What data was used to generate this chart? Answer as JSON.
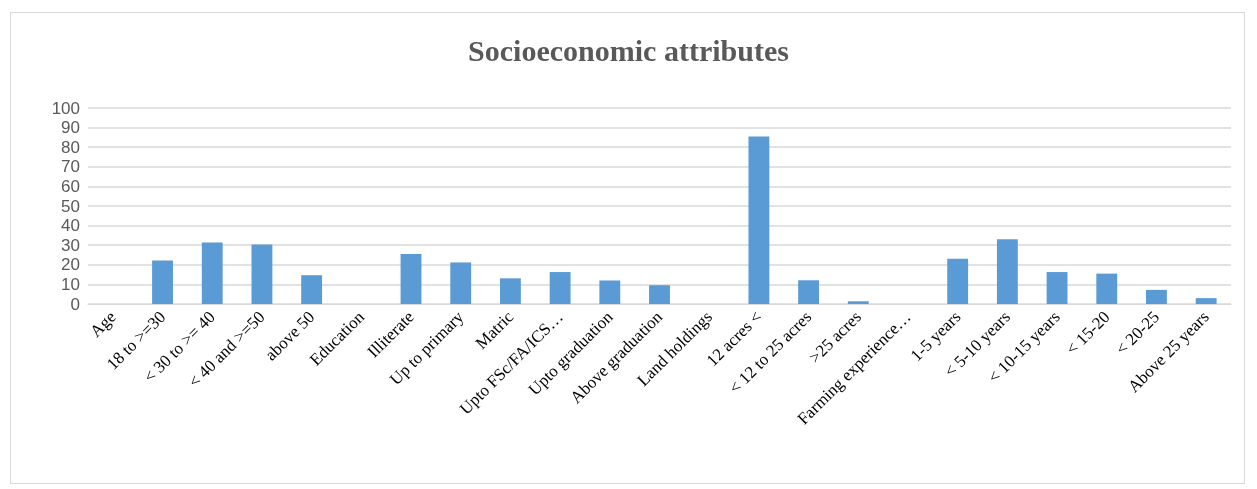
{
  "chart_data": {
    "type": "bar",
    "title": "Socioeconomic attributes",
    "categories": [
      "Age",
      "18 to >=30",
      "< 30 to >= 40",
      "< 40 and >=50",
      "above 50",
      "Education",
      "Illiterate",
      "Up to primary",
      "Matric",
      "Upto FSc/FA/ICS…",
      "Upto graduation",
      "Above graduation",
      "Land holdings",
      "12 acres <",
      "< 12 to 25 acres",
      ">25 acres",
      "Farming experience…",
      "1-5 years",
      "< 5-10 years",
      "< 10-15 years",
      "< 15-20",
      "< 20-25",
      "Above 25 years"
    ],
    "values": [
      null,
      22.2,
      31.4,
      30.4,
      14.7,
      null,
      25.5,
      21.2,
      13.1,
      16.3,
      12,
      9.6,
      null,
      85.5,
      12.1,
      1.4,
      null,
      23.1,
      33,
      16.3,
      15.5,
      7.2,
      3
    ],
    "color": "#5b9bd5",
    "ylim": [
      0,
      100
    ],
    "yticks": [
      0,
      10,
      20,
      30,
      40,
      50,
      60,
      70,
      80,
      90,
      100
    ],
    "grid": "y"
  }
}
